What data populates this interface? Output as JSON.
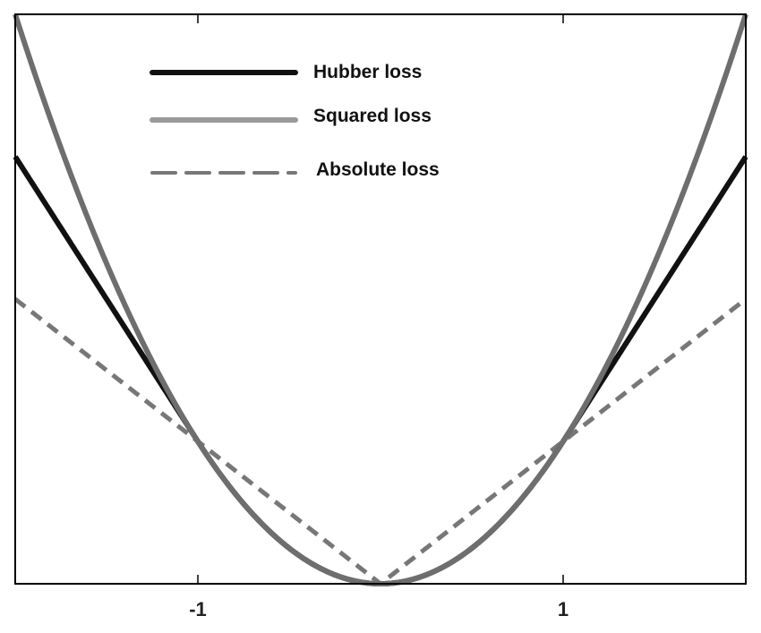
{
  "chart_data": {
    "type": "line",
    "title": "",
    "xlabel": "",
    "ylabel": "",
    "xlim": [
      -2,
      2
    ],
    "ylim": [
      0,
      4
    ],
    "xticks": [
      {
        "value": -1,
        "label": "-1"
      },
      {
        "value": 1,
        "label": "1"
      }
    ],
    "grid": false,
    "legend_position": "top-left",
    "series": [
      {
        "name": "Hubber  loss",
        "function": "huber",
        "delta": 1,
        "color": "#111111",
        "dash": "solid",
        "points": [
          [
            -2,
            3
          ],
          [
            -1.5,
            2
          ],
          [
            -1,
            1
          ],
          [
            -0.5,
            0.25
          ],
          [
            0,
            0
          ],
          [
            0.5,
            0.25
          ],
          [
            1,
            1
          ],
          [
            1.5,
            2
          ],
          [
            2,
            3
          ]
        ]
      },
      {
        "name": "Squared loss",
        "function": "squared",
        "color": "#6e6e6e",
        "legend_color": "#9a9a9a",
        "dash": "solid",
        "points": [
          [
            -2,
            4
          ],
          [
            -1.5,
            2.25
          ],
          [
            -1,
            1
          ],
          [
            -0.5,
            0.25
          ],
          [
            0,
            0
          ],
          [
            0.5,
            0.25
          ],
          [
            1,
            1
          ],
          [
            1.5,
            2.25
          ],
          [
            2,
            4
          ]
        ]
      },
      {
        "name": "Absolute loss",
        "function": "absolute",
        "color": "#777777",
        "dash": "dashed",
        "points": [
          [
            -2,
            2
          ],
          [
            -1,
            1
          ],
          [
            0,
            0
          ],
          [
            1,
            1
          ],
          [
            2,
            2
          ]
        ]
      }
    ]
  }
}
